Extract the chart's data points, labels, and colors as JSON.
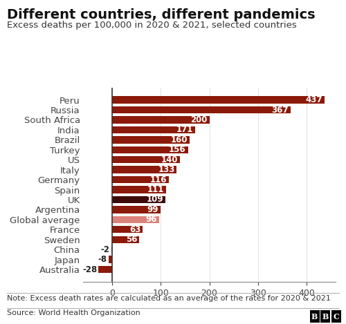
{
  "title": "Different countries, different pandemics",
  "subtitle": "Excess deaths per 100,000 in 2020 & 2021, selected countries",
  "note": "Note: Excess death rates are calculated as an average of the rates for 2020 & 2021",
  "source": "Source: World Health Organization",
  "categories": [
    "Peru",
    "Russia",
    "South Africa",
    "India",
    "Brazil",
    "Turkey",
    "US",
    "Italy",
    "Germany",
    "Spain",
    "UK",
    "Argentina",
    "Global average",
    "France",
    "Sweden",
    "China",
    "Japan",
    "Australia"
  ],
  "values": [
    437,
    367,
    200,
    171,
    160,
    156,
    140,
    133,
    116,
    111,
    109,
    99,
    96,
    63,
    56,
    -2,
    -8,
    -28
  ],
  "bar_colors": [
    "#8b1a0a",
    "#8b1a0a",
    "#8b1a0a",
    "#8b1a0a",
    "#8b1a0a",
    "#8b1a0a",
    "#8b1a0a",
    "#8b1a0a",
    "#8b1a0a",
    "#8b1a0a",
    "#3d0a0a",
    "#8b1a0a",
    "#d9837a",
    "#8b1a0a",
    "#8b1a0a",
    "#8b1a0a",
    "#8b1a0a",
    "#8b1a0a"
  ],
  "label_color_pos": "#ffffff",
  "label_color_neg": "#222222",
  "background_color": "#ffffff",
  "xlim": [
    -60,
    460
  ],
  "title_fontsize": 14,
  "subtitle_fontsize": 9.5,
  "tick_fontsize": 9,
  "bar_label_fontsize": 8.5,
  "note_fontsize": 8,
  "source_fontsize": 8,
  "ytick_fontsize": 9.5
}
